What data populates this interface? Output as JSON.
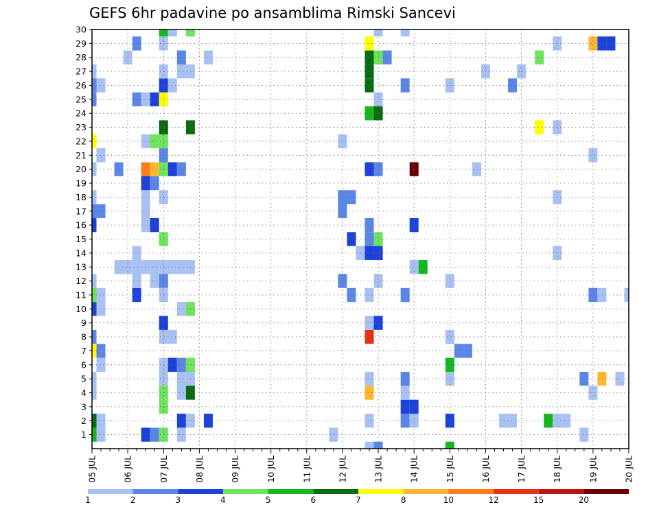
{
  "chart_data": {
    "type": "heatmap",
    "title": "GEFS 6hr padavine po ansamblima Rimski Sancevi",
    "xlabel": "",
    "ylabel": "",
    "x_ticks": [
      "05 JUL",
      "06 JUL",
      "07 JUL",
      "08 JUL",
      "09 JUL",
      "10 JUL",
      "11 JUL",
      "12 JUL",
      "13 JUL",
      "14 JUL",
      "15 JUL",
      "16 JUL",
      "17 JUL",
      "18 JUL",
      "19 JUL",
      "20 JUL"
    ],
    "x_range": [
      "05 JUL 00Z",
      "20 JUL 00Z"
    ],
    "x_step_hours": 6,
    "y_ticks": [
      1,
      2,
      3,
      4,
      5,
      6,
      7,
      8,
      9,
      10,
      11,
      12,
      13,
      14,
      15,
      16,
      17,
      18,
      19,
      20,
      21,
      22,
      23,
      24,
      25,
      26,
      27,
      28,
      29,
      30
    ],
    "ylim": [
      0,
      30
    ],
    "grid": true,
    "colorbar": {
      "placement": "bottom",
      "labels": [
        "1",
        "2",
        "3",
        "4",
        "5",
        "6",
        "7",
        "8",
        "10",
        "12",
        "15",
        "20"
      ],
      "colors": [
        "#a9c1f2",
        "#5b86e6",
        "#1c42d9",
        "#6de35e",
        "#12b81c",
        "#0a6b10",
        "#ffff00",
        "#ffb732",
        "#ff7c1a",
        "#e83218",
        "#b81410",
        "#6b0000"
      ]
    },
    "cells": [
      {
        "t": 0,
        "m": 1,
        "v": 5
      },
      {
        "t": 0,
        "m": 2,
        "v": 6
      },
      {
        "t": 0,
        "m": 4,
        "v": 1
      },
      {
        "t": 0,
        "m": 5,
        "v": 1
      },
      {
        "t": 0,
        "m": 7,
        "v": 7
      },
      {
        "t": 0,
        "m": 8,
        "v": 2
      },
      {
        "t": 0,
        "m": 10,
        "v": 3
      },
      {
        "t": 0,
        "m": 11,
        "v": 4
      },
      {
        "t": 0,
        "m": 12,
        "v": 1
      },
      {
        "t": 0,
        "m": 16,
        "v": 3
      },
      {
        "t": 0,
        "m": 17,
        "v": 2
      },
      {
        "t": 0,
        "m": 18,
        "v": 1
      },
      {
        "t": 0,
        "m": 20,
        "v": 1
      },
      {
        "t": 0,
        "m": 22,
        "v": 7
      },
      {
        "t": 0,
        "m": 25,
        "v": 2
      },
      {
        "t": 0,
        "m": 26,
        "v": 2
      },
      {
        "t": 0,
        "m": 27,
        "v": 1
      },
      {
        "t": 1,
        "m": 1,
        "v": 1
      },
      {
        "t": 1,
        "m": 2,
        "v": 1
      },
      {
        "t": 1,
        "m": 6,
        "v": 1
      },
      {
        "t": 1,
        "m": 7,
        "v": 2
      },
      {
        "t": 1,
        "m": 10,
        "v": 1
      },
      {
        "t": 1,
        "m": 11,
        "v": 1
      },
      {
        "t": 1,
        "m": 17,
        "v": 2
      },
      {
        "t": 1,
        "m": 21,
        "v": 1
      },
      {
        "t": 1,
        "m": 26,
        "v": 1
      },
      {
        "t": 3,
        "m": 13,
        "v": 1
      },
      {
        "t": 3,
        "m": 20,
        "v": 2
      },
      {
        "t": 4,
        "m": 28,
        "v": 1
      },
      {
        "t": 4,
        "m": 13,
        "v": 1
      },
      {
        "t": 5,
        "m": 11,
        "v": 3
      },
      {
        "t": 5,
        "m": 12,
        "v": 1
      },
      {
        "t": 5,
        "m": 13,
        "v": 1
      },
      {
        "t": 5,
        "m": 14,
        "v": 1
      },
      {
        "t": 5,
        "m": 25,
        "v": 2
      },
      {
        "t": 5,
        "m": 29,
        "v": 2
      },
      {
        "t": 6,
        "m": 1,
        "v": 3
      },
      {
        "t": 6,
        "m": 13,
        "v": 1
      },
      {
        "t": 6,
        "m": 16,
        "v": 1
      },
      {
        "t": 6,
        "m": 17,
        "v": 1
      },
      {
        "t": 6,
        "m": 18,
        "v": 1
      },
      {
        "t": 6,
        "m": 19,
        "v": 3
      },
      {
        "t": 6,
        "m": 20,
        "v": 9
      },
      {
        "t": 6,
        "m": 22,
        "v": 1
      },
      {
        "t": 6,
        "m": 25,
        "v": 1
      },
      {
        "t": 7,
        "m": 1,
        "v": 2
      },
      {
        "t": 7,
        "m": 12,
        "v": 1
      },
      {
        "t": 7,
        "m": 13,
        "v": 1
      },
      {
        "t": 7,
        "m": 16,
        "v": 3
      },
      {
        "t": 7,
        "m": 19,
        "v": 2
      },
      {
        "t": 7,
        "m": 20,
        "v": 8
      },
      {
        "t": 7,
        "m": 22,
        "v": 4
      },
      {
        "t": 7,
        "m": 25,
        "v": 3
      },
      {
        "t": 8,
        "m": 1,
        "v": 4
      },
      {
        "t": 8,
        "m": 3,
        "v": 4
      },
      {
        "t": 8,
        "m": 4,
        "v": 4
      },
      {
        "t": 8,
        "m": 5,
        "v": 1
      },
      {
        "t": 8,
        "m": 6,
        "v": 1
      },
      {
        "t": 8,
        "m": 8,
        "v": 1
      },
      {
        "t": 8,
        "m": 9,
        "v": 3
      },
      {
        "t": 8,
        "m": 11,
        "v": 1
      },
      {
        "t": 8,
        "m": 12,
        "v": 2
      },
      {
        "t": 8,
        "m": 13,
        "v": 1
      },
      {
        "t": 8,
        "m": 15,
        "v": 4
      },
      {
        "t": 8,
        "m": 18,
        "v": 1
      },
      {
        "t": 8,
        "m": 20,
        "v": 4
      },
      {
        "t": 8,
        "m": 21,
        "v": 2
      },
      {
        "t": 8,
        "m": 22,
        "v": 4
      },
      {
        "t": 8,
        "m": 23,
        "v": 6
      },
      {
        "t": 8,
        "m": 25,
        "v": 7
      },
      {
        "t": 8,
        "m": 26,
        "v": 3
      },
      {
        "t": 8,
        "m": 27,
        "v": 1
      },
      {
        "t": 8,
        "m": 29,
        "v": 1
      },
      {
        "t": 8,
        "m": 30,
        "v": 5
      },
      {
        "t": 9,
        "m": 6,
        "v": 3
      },
      {
        "t": 9,
        "m": 8,
        "v": 1
      },
      {
        "t": 9,
        "m": 13,
        "v": 1
      },
      {
        "t": 9,
        "m": 20,
        "v": 3
      },
      {
        "t": 9,
        "m": 26,
        "v": 1
      },
      {
        "t": 9,
        "m": 30,
        "v": 1
      },
      {
        "t": 10,
        "m": 1,
        "v": 1
      },
      {
        "t": 10,
        "m": 2,
        "v": 3
      },
      {
        "t": 10,
        "m": 4,
        "v": 1
      },
      {
        "t": 10,
        "m": 5,
        "v": 1
      },
      {
        "t": 10,
        "m": 6,
        "v": 2
      },
      {
        "t": 10,
        "m": 10,
        "v": 1
      },
      {
        "t": 10,
        "m": 13,
        "v": 1
      },
      {
        "t": 10,
        "m": 20,
        "v": 2
      },
      {
        "t": 10,
        "m": 27,
        "v": 1
      },
      {
        "t": 10,
        "m": 28,
        "v": 2
      },
      {
        "t": 11,
        "m": 2,
        "v": 1
      },
      {
        "t": 11,
        "m": 4,
        "v": 6
      },
      {
        "t": 11,
        "m": 5,
        "v": 1
      },
      {
        "t": 11,
        "m": 6,
        "v": 4
      },
      {
        "t": 11,
        "m": 10,
        "v": 4
      },
      {
        "t": 11,
        "m": 13,
        "v": 1
      },
      {
        "t": 11,
        "m": 23,
        "v": 6
      },
      {
        "t": 11,
        "m": 27,
        "v": 1
      },
      {
        "t": 11,
        "m": 30,
        "v": 4
      },
      {
        "t": 13,
        "m": 2,
        "v": 3
      },
      {
        "t": 13,
        "m": 28,
        "v": 1
      },
      {
        "t": 27,
        "m": 1,
        "v": 1
      },
      {
        "t": 28,
        "m": 12,
        "v": 2
      },
      {
        "t": 28,
        "m": 17,
        "v": 2
      },
      {
        "t": 28,
        "m": 18,
        "v": 2
      },
      {
        "t": 28,
        "m": 22,
        "v": 1
      },
      {
        "t": 29,
        "m": 11,
        "v": 2
      },
      {
        "t": 29,
        "m": 15,
        "v": 3
      },
      {
        "t": 29,
        "m": 18,
        "v": 2
      },
      {
        "t": 30,
        "m": 14,
        "v": 1
      },
      {
        "t": 31,
        "m": 0,
        "v": 1
      },
      {
        "t": 31,
        "m": 2,
        "v": 1
      },
      {
        "t": 31,
        "m": 4,
        "v": 8
      },
      {
        "t": 31,
        "m": 5,
        "v": 1
      },
      {
        "t": 31,
        "m": 8,
        "v": 10
      },
      {
        "t": 31,
        "m": 9,
        "v": 1
      },
      {
        "t": 31,
        "m": 11,
        "v": 1
      },
      {
        "t": 31,
        "m": 14,
        "v": 3
      },
      {
        "t": 31,
        "m": 15,
        "v": 2
      },
      {
        "t": 31,
        "m": 16,
        "v": 2
      },
      {
        "t": 31,
        "m": 20,
        "v": 3
      },
      {
        "t": 31,
        "m": 24,
        "v": 5
      },
      {
        "t": 31,
        "m": 26,
        "v": 6
      },
      {
        "t": 31,
        "m": 27,
        "v": 6
      },
      {
        "t": 31,
        "m": 28,
        "v": 6
      },
      {
        "t": 31,
        "m": 29,
        "v": 7
      },
      {
        "t": 32,
        "m": 0,
        "v": 2
      },
      {
        "t": 32,
        "m": 9,
        "v": 3
      },
      {
        "t": 32,
        "m": 12,
        "v": 1
      },
      {
        "t": 32,
        "m": 14,
        "v": 3
      },
      {
        "t": 32,
        "m": 15,
        "v": 4
      },
      {
        "t": 32,
        "m": 20,
        "v": 2
      },
      {
        "t": 32,
        "m": 24,
        "v": 6
      },
      {
        "t": 32,
        "m": 25,
        "v": 1
      },
      {
        "t": 32,
        "m": 28,
        "v": 4
      },
      {
        "t": 32,
        "m": 30,
        "v": 1
      },
      {
        "t": 33,
        "m": 28,
        "v": 2
      },
      {
        "t": 35,
        "m": 2,
        "v": 2
      },
      {
        "t": 35,
        "m": 3,
        "v": 3
      },
      {
        "t": 35,
        "m": 4,
        "v": 1
      },
      {
        "t": 35,
        "m": 5,
        "v": 2
      },
      {
        "t": 35,
        "m": 11,
        "v": 2
      },
      {
        "t": 35,
        "m": 26,
        "v": 2
      },
      {
        "t": 35,
        "m": 30,
        "v": 1
      },
      {
        "t": 36,
        "m": 2,
        "v": 1
      },
      {
        "t": 36,
        "m": 3,
        "v": 3
      },
      {
        "t": 36,
        "m": 13,
        "v": 1
      },
      {
        "t": 36,
        "m": 16,
        "v": 3
      },
      {
        "t": 36,
        "m": 20,
        "v": 12
      },
      {
        "t": 37,
        "m": 13,
        "v": 5
      },
      {
        "t": 40,
        "m": 0,
        "v": 5
      },
      {
        "t": 40,
        "m": 2,
        "v": 3
      },
      {
        "t": 40,
        "m": 5,
        "v": 1
      },
      {
        "t": 40,
        "m": 6,
        "v": 5
      },
      {
        "t": 40,
        "m": 8,
        "v": 1
      },
      {
        "t": 40,
        "m": 12,
        "v": 1
      },
      {
        "t": 40,
        "m": 26,
        "v": 1
      },
      {
        "t": 41,
        "m": 7,
        "v": 2
      },
      {
        "t": 42,
        "m": 7,
        "v": 2
      },
      {
        "t": 43,
        "m": 20,
        "v": 1
      },
      {
        "t": 44,
        "m": 27,
        "v": 1
      },
      {
        "t": 46,
        "m": 2,
        "v": 1
      },
      {
        "t": 47,
        "m": 2,
        "v": 1
      },
      {
        "t": 47,
        "m": 26,
        "v": 2
      },
      {
        "t": 48,
        "m": 27,
        "v": 1
      },
      {
        "t": 50,
        "m": 23,
        "v": 7
      },
      {
        "t": 50,
        "m": 28,
        "v": 4
      },
      {
        "t": 51,
        "m": 2,
        "v": 5
      },
      {
        "t": 52,
        "m": 2,
        "v": 1
      },
      {
        "t": 52,
        "m": 14,
        "v": 1
      },
      {
        "t": 52,
        "m": 18,
        "v": 1
      },
      {
        "t": 52,
        "m": 23,
        "v": 1
      },
      {
        "t": 52,
        "m": 29,
        "v": 1
      },
      {
        "t": 53,
        "m": 2,
        "v": 1
      },
      {
        "t": 55,
        "m": 1,
        "v": 1
      },
      {
        "t": 55,
        "m": 5,
        "v": 2
      },
      {
        "t": 56,
        "m": 4,
        "v": 1
      },
      {
        "t": 56,
        "m": 11,
        "v": 2
      },
      {
        "t": 56,
        "m": 21,
        "v": 1
      },
      {
        "t": 56,
        "m": 29,
        "v": 8
      },
      {
        "t": 57,
        "m": 5,
        "v": 8
      },
      {
        "t": 57,
        "m": 11,
        "v": 1
      },
      {
        "t": 57,
        "m": 29,
        "v": 3
      },
      {
        "t": 58,
        "m": 29,
        "v": 3
      },
      {
        "t": 59,
        "m": 5,
        "v": 1
      },
      {
        "t": 60,
        "m": 11,
        "v": 1
      },
      {
        "t": 61,
        "m": 11,
        "v": 1
      },
      {
        "t": 62,
        "m": 6,
        "v": 3
      },
      {
        "t": 62,
        "m": 12,
        "v": 1
      },
      {
        "t": 62,
        "m": 13,
        "v": 1
      },
      {
        "t": 63,
        "m": 3,
        "v": 4
      },
      {
        "t": 64,
        "m": 3,
        "v": 4
      },
      {
        "t": 65,
        "m": 2,
        "v": 3
      },
      {
        "t": 66,
        "m": 2,
        "v": 3
      },
      {
        "t": 67,
        "m": 23,
        "v": 2
      }
    ]
  }
}
